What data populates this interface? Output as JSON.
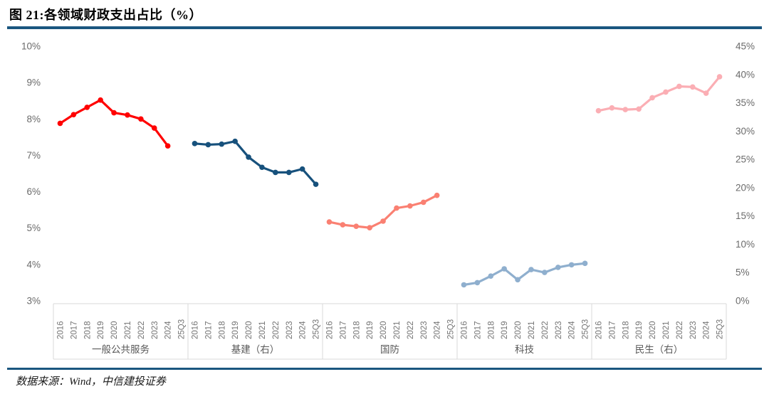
{
  "page": {
    "title": "图 21:各领域财政支出占比（%）",
    "source": "数据来源：Wind，中信建投证券"
  },
  "colors": {
    "rule": "#1A567F",
    "axis_text": "#6B6B6B",
    "year_text": "#757575",
    "group_text": "#595959",
    "band_border": "#D9D9D9"
  },
  "chart_data": {
    "type": "line",
    "title": "各领域财政支出占比（%）",
    "grid": false,
    "legend_position": "none",
    "categories": [
      "2016",
      "2017",
      "2018",
      "2019",
      "2020",
      "2021",
      "2022",
      "2023",
      "2024",
      "25Q3"
    ],
    "left_axis": {
      "min": 3,
      "max": 10,
      "tick_step": 1,
      "ticks": [
        "10%",
        "9%",
        "8%",
        "7%",
        "6%",
        "5%",
        "4%",
        "3%"
      ]
    },
    "right_axis": {
      "min": 0,
      "max": 45,
      "tick_step": 5,
      "ticks": [
        "45%",
        "40%",
        "35%",
        "30%",
        "25%",
        "20%",
        "15%",
        "10%",
        "5%",
        "0%"
      ]
    },
    "series": [
      {
        "key": "general-public-services",
        "name": "一般公共服务",
        "axis": "left",
        "color": "#FF0000",
        "values": [
          7.88,
          8.12,
          8.32,
          8.52,
          8.17,
          8.11,
          8.0,
          7.75,
          7.26
        ]
      },
      {
        "key": "infrastructure",
        "name": "基建（右）",
        "axis": "right",
        "color": "#17517C",
        "values": [
          27.8,
          27.6,
          27.7,
          28.2,
          25.4,
          23.6,
          22.7,
          22.7,
          23.3,
          20.6
        ]
      },
      {
        "key": "defense",
        "name": "国防",
        "axis": "left",
        "color": "#FA8072",
        "values": [
          5.17,
          5.09,
          5.05,
          5.01,
          5.19,
          5.55,
          5.61,
          5.71,
          5.9
        ]
      },
      {
        "key": "technology",
        "name": "科技",
        "axis": "left",
        "color": "#8FAFCE",
        "values": [
          3.44,
          3.5,
          3.68,
          3.88,
          3.58,
          3.86,
          3.78,
          3.92,
          3.99,
          4.03
        ]
      },
      {
        "key": "livelihood",
        "name": "民生（右）",
        "axis": "right",
        "color": "#FBAEB4",
        "values": [
          33.6,
          34.1,
          33.8,
          33.9,
          35.9,
          36.9,
          37.9,
          37.8,
          36.7,
          39.6
        ]
      }
    ]
  }
}
